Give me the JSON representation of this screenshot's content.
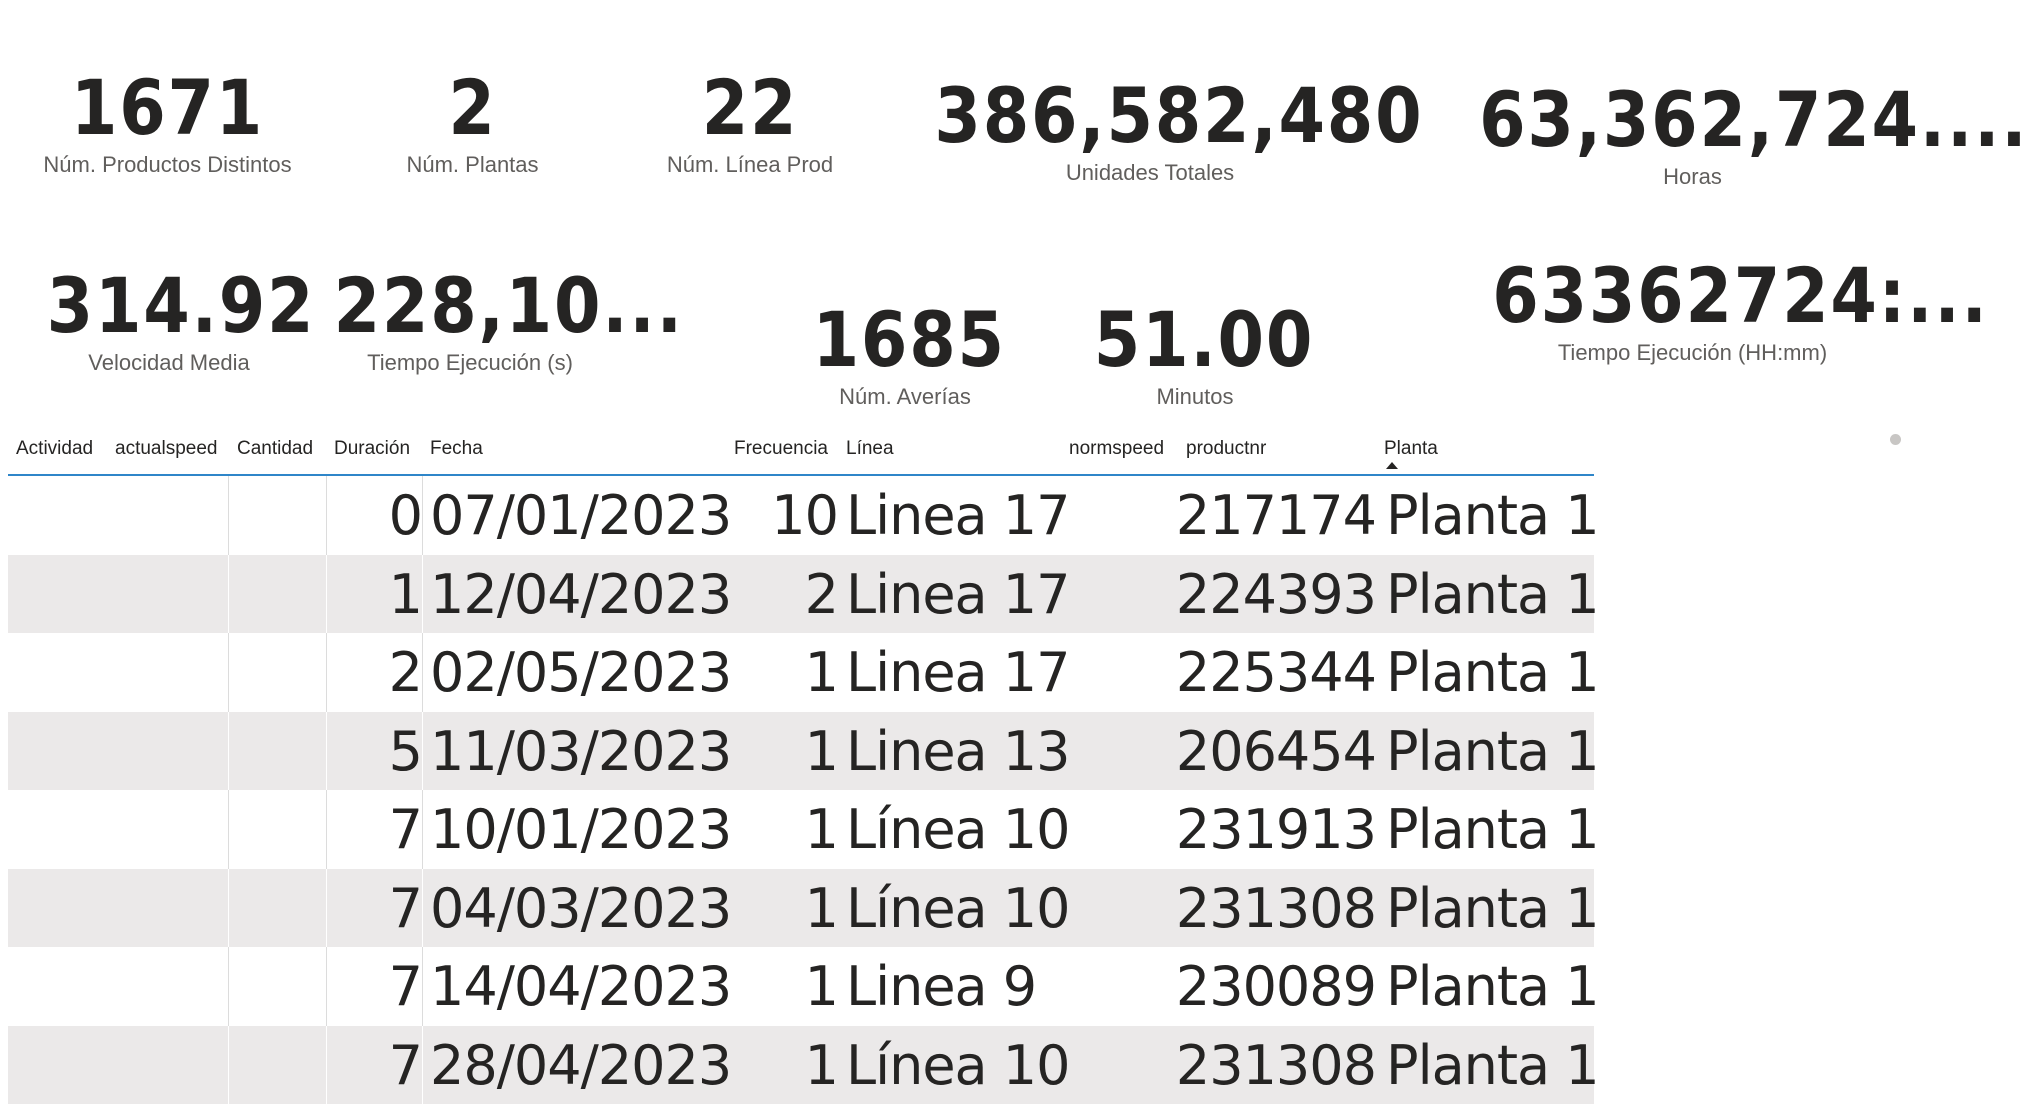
{
  "cards": [
    {
      "id": "productos",
      "value": "1671",
      "label": "Núm. Productos Distintos"
    },
    {
      "id": "plantas",
      "value": "2",
      "label": "Núm. Plantas"
    },
    {
      "id": "lineas",
      "value": "22",
      "label": "Núm. Línea Prod"
    },
    {
      "id": "unidades",
      "value": "386,582,480",
      "label": "Unidades Totales"
    },
    {
      "id": "horas",
      "value": "63,362,724....",
      "label": "Horas"
    },
    {
      "id": "velocidad",
      "value": "314.92",
      "label": "Velocidad Media"
    },
    {
      "id": "tiempo-s",
      "value": "228,10...",
      "label": "Tiempo Ejecución (s)"
    },
    {
      "id": "averias",
      "value": "1685",
      "label": "Núm. Averías"
    },
    {
      "id": "minutos",
      "value": "51.00",
      "label": "Minutos"
    },
    {
      "id": "tiempo-hhmm",
      "value": "63362724:...",
      "label": "Tiempo Ejecución (HH:mm)"
    }
  ],
  "table": {
    "columns": [
      "Actividad",
      "actualspeed",
      "Cantidad",
      "Duración",
      "Fecha",
      "Frecuencia",
      "Línea",
      "normspeed",
      "productnr",
      "Planta"
    ],
    "sorted_column": "Planta",
    "rows": [
      {
        "duracion": "0",
        "fecha": "07/01/2023",
        "frecuencia": "10",
        "linea": "Linea 17",
        "productnr": "217174",
        "planta": "Planta 1"
      },
      {
        "duracion": "1",
        "fecha": "12/04/2023",
        "frecuencia": "2",
        "linea": "Linea 17",
        "productnr": "224393",
        "planta": "Planta 1"
      },
      {
        "duracion": "2",
        "fecha": "02/05/2023",
        "frecuencia": "1",
        "linea": "Linea 17",
        "productnr": "225344",
        "planta": "Planta 1"
      },
      {
        "duracion": "5",
        "fecha": "11/03/2023",
        "frecuencia": "1",
        "linea": "Linea 13",
        "productnr": "206454",
        "planta": "Planta 1"
      },
      {
        "duracion": "7",
        "fecha": "10/01/2023",
        "frecuencia": "1",
        "linea": "Línea 10",
        "productnr": "231913",
        "planta": "Planta 1"
      },
      {
        "duracion": "7",
        "fecha": "04/03/2023",
        "frecuencia": "1",
        "linea": "Línea 10",
        "productnr": "231308",
        "planta": "Planta 1"
      },
      {
        "duracion": "7",
        "fecha": "14/04/2023",
        "frecuencia": "1",
        "linea": "Linea 9",
        "productnr": "230089",
        "planta": "Planta 1"
      },
      {
        "duracion": "7",
        "fecha": "28/04/2023",
        "frecuencia": "1",
        "linea": "Línea 10",
        "productnr": "231308",
        "planta": "Planta 1"
      }
    ]
  }
}
